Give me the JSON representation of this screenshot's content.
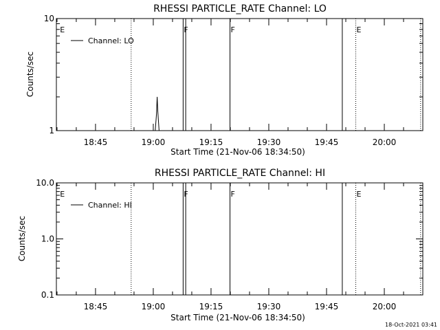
{
  "footer": {
    "timestamp": "18-Oct-2021 03:41"
  },
  "chart_data": [
    {
      "type": "line",
      "title": "RHESSI PARTICLE_RATE Channel: LO",
      "xlabel": "Start Time (21-Nov-06 18:34:50)",
      "ylabel": "Counts/sec",
      "yscale": "log",
      "ylim": [
        1,
        10
      ],
      "y_ticks": [
        {
          "v": 1,
          "label": "1"
        },
        {
          "v": 10,
          "label": "10"
        }
      ],
      "xlim": [
        "18:34:50",
        "20:10:00"
      ],
      "x_ticks": [
        {
          "t": "18:45",
          "label": "18:45"
        },
        {
          "t": "19:00",
          "label": "19:00"
        },
        {
          "t": "19:15",
          "label": "19:15"
        },
        {
          "t": "19:30",
          "label": "19:30"
        },
        {
          "t": "19:45",
          "label": "19:45"
        },
        {
          "t": "20:00",
          "label": "20:00"
        }
      ],
      "legend": {
        "position": "top-left",
        "label": "Channel: LO"
      },
      "series": [
        {
          "name": "Channel: LO",
          "points": [
            [
              "19:00:30",
              1
            ],
            [
              "19:00:50",
              1.4
            ],
            [
              "19:01:00",
              2.0
            ],
            [
              "19:01:10",
              1.5
            ],
            [
              "19:01:30",
              1
            ]
          ]
        }
      ],
      "markers": [
        {
          "t": "18:35:30",
          "style": "none",
          "label": "E"
        },
        {
          "t": "18:54:10",
          "style": "dotted",
          "label": ""
        },
        {
          "t": "19:07:40",
          "style": "solid",
          "label": "F"
        },
        {
          "t": "19:08:20",
          "style": "solid",
          "label": ""
        },
        {
          "t": "19:19:50",
          "style": "solid",
          "label": "F"
        },
        {
          "t": "19:49:00",
          "style": "solid",
          "label": ""
        },
        {
          "t": "19:52:30",
          "style": "dotted",
          "label": "E"
        },
        {
          "t": "20:09:20",
          "style": "dotted",
          "label": ""
        }
      ]
    },
    {
      "type": "line",
      "title": "RHESSI PARTICLE_RATE Channel: HI",
      "xlabel": "Start Time (21-Nov-06 18:34:50)",
      "ylabel": "Counts/sec",
      "yscale": "log",
      "ylim": [
        0.1,
        10
      ],
      "y_ticks": [
        {
          "v": 0.1,
          "label": "0.1"
        },
        {
          "v": 1,
          "label": "1.0"
        },
        {
          "v": 10,
          "label": "10.0"
        }
      ],
      "xlim": [
        "18:34:50",
        "20:10:00"
      ],
      "x_ticks": [
        {
          "t": "18:45",
          "label": "18:45"
        },
        {
          "t": "19:00",
          "label": "19:00"
        },
        {
          "t": "19:15",
          "label": "19:15"
        },
        {
          "t": "19:30",
          "label": "19:30"
        },
        {
          "t": "19:45",
          "label": "19:45"
        },
        {
          "t": "20:00",
          "label": "20:00"
        }
      ],
      "legend": {
        "position": "top-left",
        "label": "Channel: HI"
      },
      "series": [
        {
          "name": "Channel: HI",
          "points": []
        }
      ],
      "markers": [
        {
          "t": "18:35:30",
          "style": "none",
          "label": "E"
        },
        {
          "t": "18:54:10",
          "style": "dotted",
          "label": ""
        },
        {
          "t": "19:07:40",
          "style": "solid",
          "label": "F"
        },
        {
          "t": "19:08:20",
          "style": "solid",
          "label": ""
        },
        {
          "t": "19:19:50",
          "style": "solid",
          "label": "F"
        },
        {
          "t": "19:49:00",
          "style": "solid",
          "label": ""
        },
        {
          "t": "19:52:30",
          "style": "dotted",
          "label": "E"
        },
        {
          "t": "20:09:20",
          "style": "dotted",
          "label": ""
        }
      ]
    }
  ]
}
